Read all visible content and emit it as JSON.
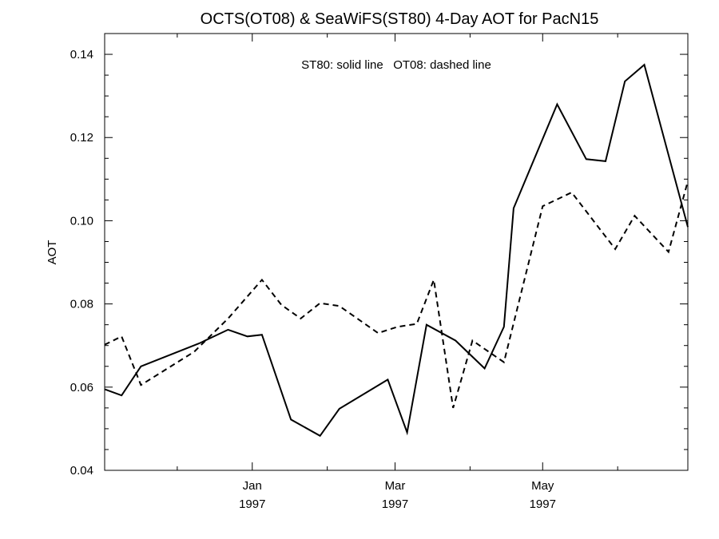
{
  "chart_data": {
    "type": "line",
    "title": "OCTS(OT08) & SeaWiFS(ST80) 4-Day AOT for PacN15",
    "legend_text": "ST80: solid line   OT08: dashed line",
    "ylabel": "AOT",
    "xlabel": "",
    "ylim": [
      0.04,
      0.145
    ],
    "xlim": [
      "1996-11-01",
      "1997-06-30"
    ],
    "yticks": [
      0.04,
      0.06,
      0.08,
      0.1,
      0.12,
      0.14
    ],
    "ytick_labels": [
      "0.04",
      "0.06",
      "0.08",
      "0.10",
      "0.12",
      "0.14"
    ],
    "xticks": [
      {
        "date": "1997-01-01",
        "month": "Jan",
        "year": "1997"
      },
      {
        "date": "1997-03-01",
        "month": "Mar",
        "year": "1997"
      },
      {
        "date": "1997-05-01",
        "month": "May",
        "year": "1997"
      }
    ],
    "minor_xticks": [
      "1996-12-01",
      "1997-02-01",
      "1997-04-01",
      "1997-06-01"
    ],
    "grid": false,
    "series": [
      {
        "name": "ST80",
        "style": "solid",
        "color": "#000000",
        "x": [
          "1996-11-01",
          "1996-11-08",
          "1996-11-16",
          "1996-12-10",
          "1996-12-22",
          "1996-12-30",
          "1997-01-05",
          "1997-01-17",
          "1997-01-29",
          "1997-02-06",
          "1997-02-26",
          "1997-03-06",
          "1997-03-14",
          "1997-03-26",
          "1997-04-07",
          "1997-04-15",
          "1997-04-19",
          "1997-05-07",
          "1997-05-19",
          "1997-05-27",
          "1997-06-04",
          "1997-06-12",
          "1997-06-30"
        ],
        "y": [
          0.0595,
          0.058,
          0.065,
          0.0705,
          0.0738,
          0.0722,
          0.0726,
          0.0522,
          0.0483,
          0.0548,
          0.0618,
          0.0491,
          0.075,
          0.0712,
          0.0645,
          0.0745,
          0.103,
          0.128,
          0.1148,
          0.1143,
          0.1335,
          0.1375,
          0.0985
        ]
      },
      {
        "name": "OT08",
        "style": "dashed",
        "color": "#000000",
        "x": [
          "1996-11-01",
          "1996-11-08",
          "1996-11-16",
          "1996-12-08",
          "1996-12-22",
          "1997-01-05",
          "1997-01-13",
          "1997-01-21",
          "1997-01-29",
          "1997-02-06",
          "1997-02-22",
          "1997-03-02",
          "1997-03-10",
          "1997-03-17",
          "1997-03-25",
          "1997-04-02",
          "1997-04-15",
          "1997-05-01",
          "1997-05-13",
          "1997-05-31",
          "1997-06-08",
          "1997-06-22",
          "1997-06-30"
        ],
        "y": [
          0.0702,
          0.0722,
          0.0605,
          0.0685,
          0.0765,
          0.0858,
          0.0798,
          0.0765,
          0.0802,
          0.0795,
          0.073,
          0.0745,
          0.0752,
          0.0858,
          0.055,
          0.0712,
          0.066,
          0.1035,
          0.1068,
          0.0932,
          0.1012,
          0.0925,
          0.1095
        ]
      }
    ]
  }
}
